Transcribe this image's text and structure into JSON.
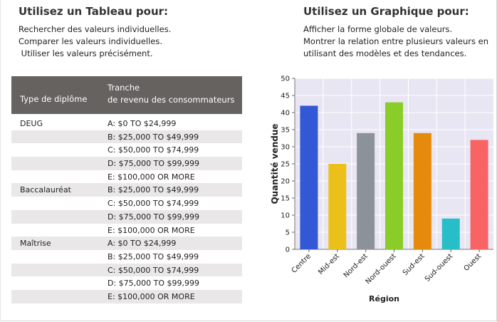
{
  "left": {
    "heading": "Utilisez un Tableau pour:",
    "lines": [
      "Rechercher des valeurs individuelles.",
      "Comparer les valeurs individuelles.",
      " Utiliser les valeurs précisément."
    ]
  },
  "right": {
    "heading": "Utilisez un Graphique pour:",
    "lines": [
      "Afficher la forme globale de valeurs.",
      "Montrer la relation entre plusieurs valeurs en",
      "utilisant des modèles et des tendances."
    ]
  },
  "table": {
    "col1_header": "Type de diplôme",
    "col2_header_line1": "Tranche",
    "col2_header_line2": "de revenu des consommateurs",
    "rows": [
      {
        "degree": "DEUG",
        "range": "A: $0 TO $24,999"
      },
      {
        "degree": "",
        "range": "B: $25,000 TO $49,999"
      },
      {
        "degree": "",
        "range": "C: $50,000 TO $74,999"
      },
      {
        "degree": "",
        "range": "D: $75,000 TO $99,999"
      },
      {
        "degree": "",
        "range": "E: $100,000 OR MORE"
      },
      {
        "degree": "Baccalauréat",
        "range": "B: $25,000 TO $49,999"
      },
      {
        "degree": "",
        "range": "C: $50,000 TO $74,999"
      },
      {
        "degree": "",
        "range": "D: $75,000 TO $99,999"
      },
      {
        "degree": "",
        "range": "E: $100,000 OR MORE"
      },
      {
        "degree": "Maîtrise",
        "range": "A: $0 TO $24,999"
      },
      {
        "degree": "",
        "range": "B: $25,000 TO $49,999"
      },
      {
        "degree": "",
        "range": "C: $50,000 TO $74,999"
      },
      {
        "degree": "",
        "range": "D: $75,000 TO $99,999"
      },
      {
        "degree": "",
        "range": "E: $100,000 OR MORE"
      }
    ]
  },
  "chart_data": {
    "type": "bar",
    "categories": [
      "Centre",
      "Mid-est",
      "Nord-est",
      "Nord-ouest",
      "Sud-est",
      "Sud-ouest",
      "Ouest"
    ],
    "values": [
      42,
      25,
      34,
      43,
      34,
      9,
      32
    ],
    "colors": [
      "#3358d6",
      "#ecc01b",
      "#8c9299",
      "#8acc28",
      "#e58a0c",
      "#27bec8",
      "#f86464"
    ],
    "xlabel": "Région",
    "ylabel": "Quantité vendue",
    "ylim": [
      0,
      50
    ],
    "yticks": [
      0,
      5,
      10,
      15,
      20,
      25,
      30,
      35,
      40,
      45,
      50
    ],
    "grid": true,
    "plot_background": "#e9e6f3"
  }
}
